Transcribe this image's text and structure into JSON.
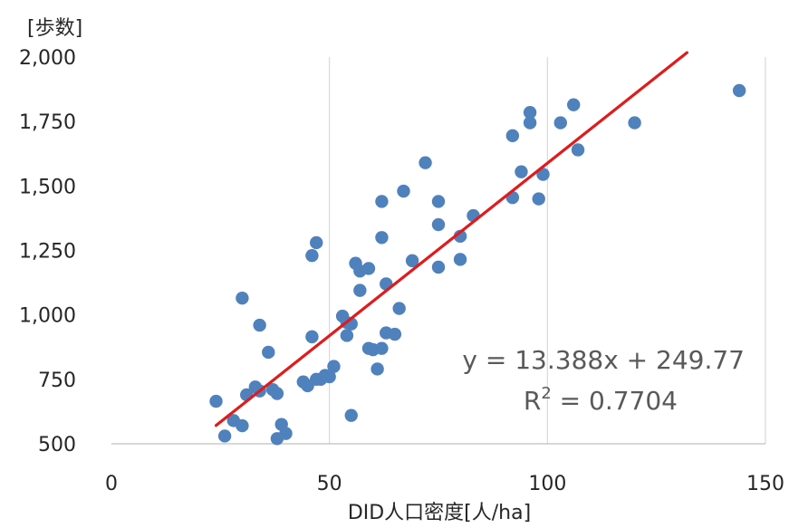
{
  "chart_data": {
    "type": "scatter",
    "title": "",
    "ylabel": "[歩数]",
    "xlabel": "DID人口密度[人/ha]",
    "xlim": [
      0,
      150
    ],
    "ylim": [
      500,
      2000
    ],
    "x_ticks": [
      0,
      50,
      100,
      150
    ],
    "x_tick_labels": [
      "0",
      "50",
      "100",
      "150"
    ],
    "y_ticks": [
      500,
      750,
      1000,
      1250,
      1500,
      1750,
      2000
    ],
    "y_tick_labels": [
      "500",
      "750",
      "1,000",
      "1,250",
      "1,500",
      "1,750",
      "2,000"
    ],
    "grid": "vertical",
    "marker_color": "#4f81bd",
    "trendline_color": "#e31a1c",
    "trendline": {
      "slope": 13.388,
      "intercept": 249.77,
      "x_start": 24,
      "x_end": 132,
      "equation": "y = 13.388x + 249.77",
      "r2_label": "R",
      "r2_sup": "2",
      "r2_value": " = 0.7704"
    },
    "points": [
      [
        24,
        665
      ],
      [
        26,
        530
      ],
      [
        28,
        590
      ],
      [
        30,
        1065
      ],
      [
        30,
        570
      ],
      [
        31,
        690
      ],
      [
        33,
        720
      ],
      [
        34,
        705
      ],
      [
        34,
        960
      ],
      [
        36,
        855
      ],
      [
        37,
        710
      ],
      [
        38,
        695
      ],
      [
        38,
        520
      ],
      [
        39,
        575
      ],
      [
        40,
        540
      ],
      [
        44,
        740
      ],
      [
        45,
        725
      ],
      [
        46,
        915
      ],
      [
        46,
        1230
      ],
      [
        47,
        1280
      ],
      [
        47,
        750
      ],
      [
        48,
        750
      ],
      [
        49,
        765
      ],
      [
        50,
        760
      ],
      [
        51,
        800
      ],
      [
        53,
        995
      ],
      [
        54,
        970
      ],
      [
        54,
        920
      ],
      [
        55,
        965
      ],
      [
        55,
        610
      ],
      [
        56,
        1200
      ],
      [
        57,
        1170
      ],
      [
        57,
        1095
      ],
      [
        59,
        1180
      ],
      [
        59,
        870
      ],
      [
        60,
        865
      ],
      [
        61,
        790
      ],
      [
        62,
        870
      ],
      [
        62,
        1300
      ],
      [
        62,
        1440
      ],
      [
        63,
        930
      ],
      [
        63,
        1120
      ],
      [
        65,
        925
      ],
      [
        66,
        1025
      ],
      [
        67,
        1480
      ],
      [
        69,
        1210
      ],
      [
        72,
        1590
      ],
      [
        75,
        1440
      ],
      [
        75,
        1350
      ],
      [
        75,
        1185
      ],
      [
        80,
        1305
      ],
      [
        80,
        1215
      ],
      [
        83,
        1385
      ],
      [
        92,
        1455
      ],
      [
        92,
        1695
      ],
      [
        94,
        1555
      ],
      [
        96,
        1745
      ],
      [
        96,
        1785
      ],
      [
        98,
        1450
      ],
      [
        99,
        1545
      ],
      [
        103,
        1745
      ],
      [
        106,
        1815
      ],
      [
        107,
        1640
      ],
      [
        120,
        1745
      ],
      [
        144,
        1870
      ]
    ]
  }
}
